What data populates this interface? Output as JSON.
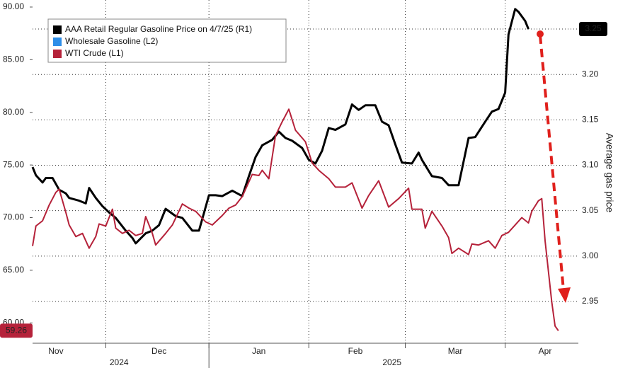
{
  "chart_data": {
    "type": "line",
    "y2_label": "Average gas price",
    "xlim": [
      0,
      164
    ],
    "x_separators": [
      22,
      53,
      83,
      112,
      142
    ],
    "month_labels": [
      {
        "value": 7,
        "label": "Nov"
      },
      {
        "value": 38,
        "label": "Dec"
      },
      {
        "value": 68,
        "label": "Jan"
      },
      {
        "value": 97,
        "label": "Feb"
      },
      {
        "value": 127,
        "label": "Mar"
      },
      {
        "value": 154,
        "label": "Apr"
      }
    ],
    "year_labels": [
      {
        "value": 26,
        "label": "2024"
      },
      {
        "value": 108,
        "label": "2025"
      }
    ],
    "year_separator": 53,
    "ylim": [
      58.07,
      90.67
    ],
    "yticks": [
      {
        "value": 60,
        "label": "60.00"
      },
      {
        "value": 65,
        "label": "65.00"
      },
      {
        "value": 70,
        "label": "70.00"
      },
      {
        "value": 75,
        "label": "75.00"
      },
      {
        "value": 80,
        "label": "80.00"
      },
      {
        "value": 85,
        "label": "85.00"
      },
      {
        "value": 90,
        "label": "90.00"
      }
    ],
    "y2lim": [
      2.904,
      3.282
    ],
    "y2ticks": [
      2.95,
      {
        "value": 3.0,
        "label": "3.00"
      },
      3.05,
      {
        "value": 3.1,
        "label": "3.10"
      },
      3.15,
      {
        "value": 3.2,
        "label": "3.20"
      }
    ],
    "grid": true,
    "series": [
      {
        "name": "AAA Retail Regular Gasoline Price on 4/7/25 (R1)",
        "color": "#000000",
        "axis": "y2",
        "last_label": "3.25",
        "x": [
          0,
          1,
          3,
          4,
          6,
          8,
          10,
          11,
          14,
          16,
          17,
          19,
          21,
          23,
          25,
          28,
          30,
          31,
          34,
          36,
          38,
          40,
          43,
          45,
          48,
          50,
          53,
          55,
          57,
          60,
          63,
          65,
          67,
          69,
          72,
          74,
          76,
          78,
          81,
          83,
          85,
          87,
          89,
          91,
          94,
          96,
          98,
          100,
          103,
          105,
          107,
          109,
          111,
          114,
          116,
          117,
          120,
          123,
          125,
          128,
          131,
          133,
          136,
          138,
          140,
          142,
          143,
          145,
          146,
          148,
          149
        ],
        "values": [
          3.098,
          3.089,
          3.081,
          3.086,
          3.086,
          3.073,
          3.069,
          3.064,
          3.061,
          3.058,
          3.075,
          3.064,
          3.055,
          3.048,
          3.042,
          3.028,
          3.02,
          3.014,
          3.025,
          3.028,
          3.034,
          3.052,
          3.044,
          3.042,
          3.028,
          3.028,
          3.067,
          3.067,
          3.066,
          3.072,
          3.066,
          3.088,
          3.109,
          3.122,
          3.128,
          3.137,
          3.13,
          3.127,
          3.119,
          3.106,
          3.102,
          3.116,
          3.141,
          3.139,
          3.145,
          3.167,
          3.161,
          3.166,
          3.166,
          3.148,
          3.144,
          3.123,
          3.103,
          3.102,
          3.114,
          3.106,
          3.088,
          3.086,
          3.078,
          3.078,
          3.13,
          3.131,
          3.148,
          3.159,
          3.162,
          3.18,
          3.244,
          3.272,
          3.269,
          3.259,
          3.25
        ]
      },
      {
        "name": "Wholesale Gasoline (L2)",
        "color": "#2e8ee8",
        "x": [],
        "values": []
      },
      {
        "name": "WTI Crude (L1)",
        "color": "#b5223a",
        "last_label": "59.26",
        "x": [
          0,
          1,
          3,
          5,
          7,
          8,
          10,
          11,
          13,
          15,
          17,
          19,
          20,
          22,
          24,
          25,
          27,
          29,
          31,
          33,
          34,
          36,
          37,
          40,
          42,
          45,
          47,
          49,
          52,
          54,
          57,
          59,
          61,
          63,
          66,
          68,
          69,
          71,
          73,
          75,
          77,
          79,
          82,
          84,
          86,
          89,
          91,
          94,
          96,
          99,
          101,
          104,
          107,
          110,
          113,
          114,
          117,
          118,
          120,
          123,
          125,
          126,
          128,
          131,
          132,
          134,
          137,
          139,
          141,
          143,
          145,
          147,
          149,
          150,
          152,
          153,
          154,
          156,
          157,
          158
        ],
        "values": [
          67.3,
          69.2,
          69.7,
          71.2,
          72.4,
          72.7,
          70.5,
          69.3,
          68.2,
          68.5,
          67.1,
          68.2,
          69.4,
          69.2,
          70.8,
          69.0,
          68.5,
          68.8,
          68.3,
          68.5,
          70.1,
          68.5,
          67.4,
          68.5,
          69.3,
          71.3,
          70.9,
          70.6,
          69.6,
          69.3,
          70.2,
          70.9,
          71.2,
          72.0,
          74.1,
          74.0,
          74.5,
          73.7,
          77.8,
          79.1,
          80.3,
          78.3,
          77.2,
          75.2,
          74.5,
          73.7,
          72.9,
          72.9,
          73.3,
          70.9,
          72.1,
          73.5,
          71.0,
          71.8,
          72.8,
          70.8,
          70.8,
          69.0,
          70.6,
          69.2,
          68.1,
          66.6,
          67.1,
          66.5,
          67.5,
          67.4,
          67.8,
          67.1,
          68.3,
          68.6,
          69.3,
          70.0,
          69.5,
          70.6,
          71.6,
          71.8,
          67.8,
          62.0,
          59.7,
          59.26
        ]
      }
    ]
  }
}
